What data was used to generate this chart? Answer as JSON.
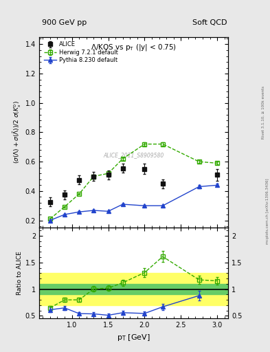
{
  "title_left": "900 GeV pp",
  "title_right": "Soft QCD",
  "plot_title": "Λ/KOS vs p_{T} (|y| < 0.75)",
  "watermark": "ALICE_2011_S8909580",
  "ylabel_main": "(σ(Λ)+σ(̅Λ))/2 σ(K^{0}_{s})",
  "ylabel_ratio": "Ratio to ALICE",
  "xlabel": "p_{T} [GeV]",
  "right_label_top": "Rivet 3.1.10, ≥ 100k events",
  "right_label_bot": "mcplots.cern.ch [arXiv:1306.3436]",
  "alice_x": [
    0.7,
    0.9,
    1.1,
    1.3,
    1.5,
    1.7,
    2.0,
    2.25,
    2.75,
    3.0
  ],
  "alice_y": [
    0.325,
    0.375,
    0.475,
    0.5,
    0.51,
    0.555,
    0.55,
    0.45,
    null,
    0.51
  ],
  "alice_yerr": [
    0.03,
    0.03,
    0.03,
    0.03,
    0.03,
    0.03,
    0.035,
    0.03,
    null,
    0.04
  ],
  "herwig_x": [
    0.7,
    0.9,
    1.1,
    1.3,
    1.5,
    1.7,
    2.0,
    2.25,
    2.75,
    3.0
  ],
  "herwig_y": [
    0.21,
    0.293,
    0.38,
    0.5,
    0.52,
    0.62,
    0.72,
    0.72,
    0.6,
    0.59
  ],
  "herwig_yerr": [
    0.005,
    0.005,
    0.006,
    0.007,
    0.007,
    0.008,
    0.01,
    0.01,
    0.01,
    0.01
  ],
  "pythia_x": [
    0.7,
    0.9,
    1.1,
    1.3,
    1.5,
    1.7,
    2.0,
    2.25,
    2.75,
    3.0
  ],
  "pythia_y": [
    0.2,
    0.24,
    0.258,
    0.268,
    0.262,
    0.31,
    0.3,
    0.3,
    0.43,
    0.44
  ],
  "pythia_yerr": [
    0.004,
    0.004,
    0.004,
    0.004,
    0.004,
    0.005,
    0.005,
    0.006,
    0.01,
    0.01
  ],
  "herwig_ratio_x": [
    0.7,
    0.9,
    1.1,
    1.3,
    1.5,
    1.7,
    2.0,
    2.25,
    2.75,
    3.0
  ],
  "herwig_ratio_y": [
    0.65,
    0.8,
    0.8,
    1.005,
    1.02,
    1.12,
    1.31,
    1.61,
    1.175,
    1.155
  ],
  "herwig_ratio_yerr": [
    0.04,
    0.04,
    0.04,
    0.05,
    0.05,
    0.06,
    0.08,
    0.1,
    0.075,
    0.07
  ],
  "pythia_ratio_x": [
    0.7,
    0.9,
    1.1,
    1.3,
    1.5,
    1.7,
    2.0,
    2.25,
    2.75,
    3.0
  ],
  "pythia_ratio_y": [
    0.615,
    0.65,
    0.543,
    0.538,
    0.512,
    0.56,
    0.546,
    0.67,
    0.88,
    null
  ],
  "pythia_ratio_yerr": [
    0.04,
    0.04,
    0.03,
    0.03,
    0.03,
    0.04,
    0.04,
    0.06,
    0.095,
    null
  ],
  "band_green_lo": 0.9,
  "band_green_hi": 1.1,
  "band_yellow_lo": 0.7,
  "band_yellow_hi": 1.3,
  "xlim": [
    0.55,
    3.15
  ],
  "ylim_main": [
    0.15,
    1.45
  ],
  "ylim_ratio": [
    0.45,
    2.15
  ],
  "alice_color": "#111111",
  "herwig_color": "#33aa00",
  "pythia_color": "#2244cc",
  "bg_color": "#e8e8e8",
  "plot_bg": "#ffffff"
}
